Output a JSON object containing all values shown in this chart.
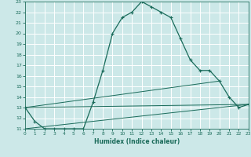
{
  "xlabel": "Humidex (Indice chaleur)",
  "bg_color": "#cce8e8",
  "grid_color": "#ffffff",
  "line_color": "#1a6b5a",
  "xlim": [
    0,
    23
  ],
  "ylim": [
    11,
    23
  ],
  "yticks": [
    11,
    12,
    13,
    14,
    15,
    16,
    17,
    18,
    19,
    20,
    21,
    22,
    23
  ],
  "xticks": [
    0,
    1,
    2,
    3,
    4,
    5,
    6,
    7,
    8,
    9,
    10,
    11,
    12,
    13,
    14,
    15,
    16,
    17,
    18,
    19,
    20,
    21,
    22,
    23
  ],
  "line1_x": [
    0,
    1,
    2,
    3,
    4,
    5,
    6,
    7,
    8,
    9,
    10,
    11,
    12,
    13,
    14,
    15,
    16,
    17,
    18,
    19,
    20,
    21,
    22,
    23
  ],
  "line1_y": [
    13.0,
    11.7,
    11.0,
    11.0,
    11.0,
    11.0,
    11.0,
    13.5,
    16.5,
    20.0,
    21.5,
    22.0,
    23.0,
    22.5,
    22.0,
    21.5,
    19.5,
    17.5,
    16.5,
    16.5,
    15.5,
    14.0,
    13.0,
    13.3
  ],
  "line2_x": [
    0,
    23
  ],
  "line2_y": [
    13.0,
    13.3
  ],
  "line3_x": [
    0,
    20
  ],
  "line3_y": [
    13.0,
    15.5
  ],
  "line4_x": [
    0,
    23
  ],
  "line4_y": [
    11.0,
    13.3
  ]
}
